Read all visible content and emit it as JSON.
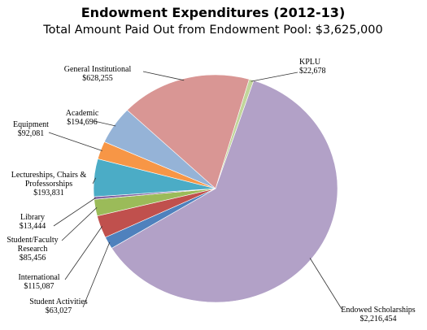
{
  "chart_data": {
    "type": "pie",
    "title": "Endowment Expenditures (2012-13)",
    "subtitle": "Total Amount Paid Out from Endowment Pool: $3,625,000",
    "slices": [
      {
        "label": [
          "KPLU"
        ],
        "value_text": "$22,678",
        "value": 22678,
        "color": "#c2d69b"
      },
      {
        "label": [
          "Endowed Scholarships"
        ],
        "value_text": "$2,216,454",
        "value": 2216454,
        "color": "#b2a1c7"
      },
      {
        "label": [
          "Student Activities"
        ],
        "value_text": "$63,027",
        "value": 63027,
        "color": "#4f81bd"
      },
      {
        "label": [
          "International"
        ],
        "value_text": "$115,087",
        "value": 115087,
        "color": "#c0504d"
      },
      {
        "label": [
          "Student/Faculty",
          "Research"
        ],
        "value_text": "$85,456",
        "value": 85456,
        "color": "#9bbb59"
      },
      {
        "label": [
          "Library"
        ],
        "value_text": "$13,444",
        "value": 13444,
        "color": "#8064a2"
      },
      {
        "label": [
          "Lectureships, Chairs &",
          "Professorships"
        ],
        "value_text": "$193,831",
        "value": 193831,
        "color": "#4bacc6"
      },
      {
        "label": [
          "Equipment"
        ],
        "value_text": "$92,081",
        "value": 92081,
        "color": "#f79646"
      },
      {
        "label": [
          "Academic"
        ],
        "value_text": "$194,696",
        "value": 194696,
        "color": "#95b3d7"
      },
      {
        "label": [
          "General Institutional"
        ],
        "value_text": "$628,255",
        "value": 628255,
        "color": "#d99694"
      }
    ],
    "legend": "none"
  }
}
